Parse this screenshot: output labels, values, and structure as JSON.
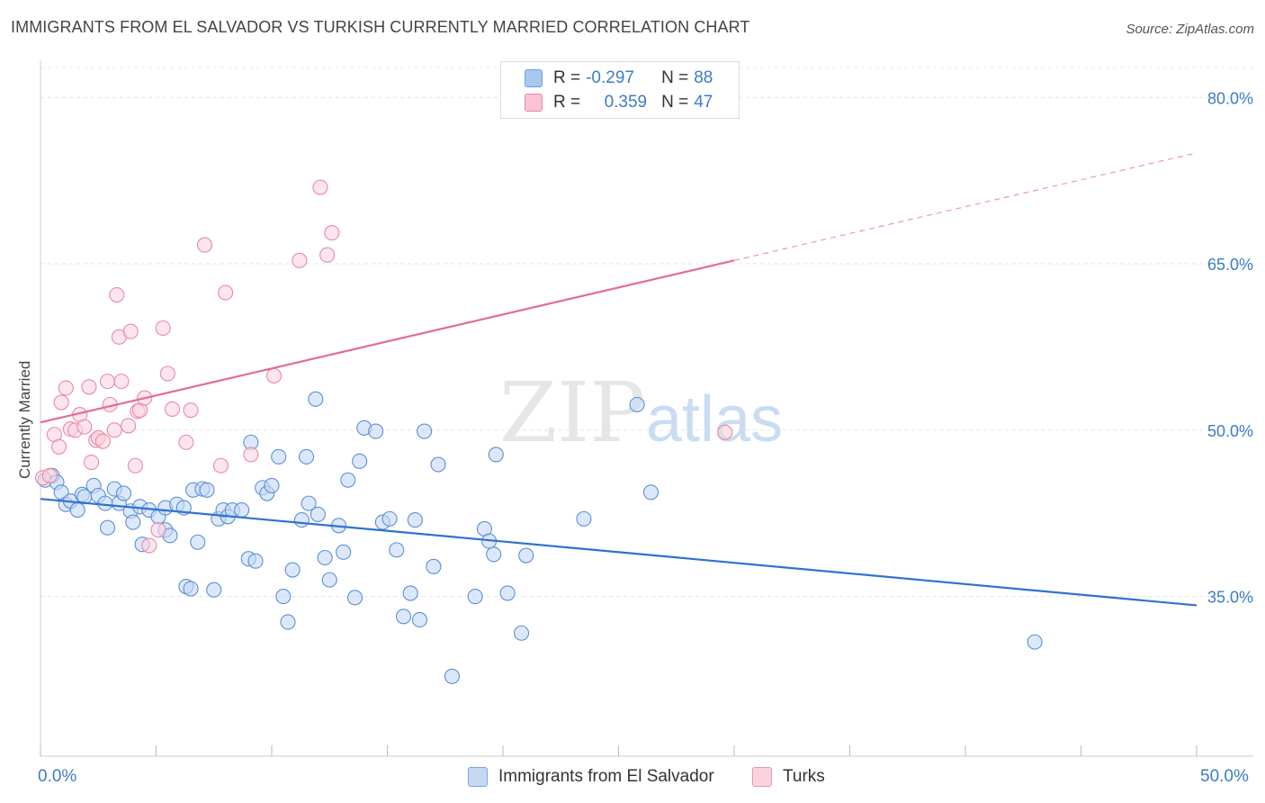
{
  "header": {
    "title": "IMMIGRANTS FROM EL SALVADOR VS TURKISH CURRENTLY MARRIED CORRELATION CHART",
    "source": "Source: ZipAtlas.com"
  },
  "legend": {
    "rows": [
      {
        "r_label": "R = ",
        "r_value": "-0.297",
        "n_label": "N = ",
        "n_value": "88",
        "color": "#a9c8f0",
        "border": "#6f9fdc"
      },
      {
        "r_label": "R = ",
        "r_value": "0.359",
        "n_label": "N = ",
        "n_value": "47",
        "color": "#f8c3d3",
        "border": "#e88aa6"
      }
    ]
  },
  "bottom_legend": [
    {
      "label": "Immigrants from El Salvador",
      "color": "#c5d9f5",
      "border": "#7aa5de"
    },
    {
      "label": "Turks",
      "color": "#fbd3df",
      "border": "#e796b0"
    }
  ],
  "watermark": {
    "zip": "ZIP",
    "atlas": "atlas"
  },
  "chart_data": {
    "type": "scatter",
    "title": "IMMIGRANTS FROM EL SALVADOR VS TURKISH CURRENTLY MARRIED CORRELATION CHART",
    "xlabel": "",
    "ylabel": "Currently Married",
    "xlim": [
      0,
      50
    ],
    "ylim": [
      20.6,
      82.7
    ],
    "x_tick_labels": [
      "0.0%",
      "50.0%"
    ],
    "y_tick_labels": [
      "35.0%",
      "50.0%",
      "65.0%",
      "80.0%"
    ],
    "y_ticks": [
      35,
      50,
      65,
      80
    ],
    "grid": true,
    "series": [
      {
        "name": "Immigrants from El Salvador",
        "color": "#5b8fd6",
        "fill": "#c5d9f5",
        "trend": {
          "x": [
            0,
            50
          ],
          "y": [
            43.8,
            34.2
          ],
          "color": "#2f72d0"
        },
        "points": [
          [
            0.2,
            45.5
          ],
          [
            0.5,
            45.9
          ],
          [
            0.7,
            45.3
          ],
          [
            0.9,
            44.4
          ],
          [
            1.1,
            43.3
          ],
          [
            1.3,
            43.6
          ],
          [
            1.6,
            42.8
          ],
          [
            1.8,
            44.2
          ],
          [
            1.9,
            44.0
          ],
          [
            2.3,
            45.0
          ],
          [
            2.5,
            44.1
          ],
          [
            2.8,
            43.4
          ],
          [
            2.9,
            41.2
          ],
          [
            3.2,
            44.7
          ],
          [
            3.4,
            43.4
          ],
          [
            3.6,
            44.3
          ],
          [
            3.9,
            42.7
          ],
          [
            4.0,
            41.7
          ],
          [
            4.3,
            43.1
          ],
          [
            4.4,
            39.7
          ],
          [
            4.7,
            42.8
          ],
          [
            5.1,
            42.2
          ],
          [
            5.4,
            43.0
          ],
          [
            5.4,
            41.0
          ],
          [
            5.6,
            40.5
          ],
          [
            5.9,
            43.3
          ],
          [
            6.2,
            43.0
          ],
          [
            6.3,
            35.9
          ],
          [
            6.5,
            35.7
          ],
          [
            6.6,
            44.6
          ],
          [
            6.8,
            39.9
          ],
          [
            7.0,
            44.7
          ],
          [
            7.2,
            44.6
          ],
          [
            7.5,
            35.6
          ],
          [
            7.7,
            42.0
          ],
          [
            7.9,
            42.8
          ],
          [
            8.1,
            42.2
          ],
          [
            8.3,
            42.8
          ],
          [
            8.7,
            42.8
          ],
          [
            9.0,
            38.4
          ],
          [
            9.1,
            48.9
          ],
          [
            9.3,
            38.2
          ],
          [
            9.6,
            44.8
          ],
          [
            9.8,
            44.3
          ],
          [
            10.0,
            45.0
          ],
          [
            10.3,
            47.6
          ],
          [
            10.5,
            35.0
          ],
          [
            10.7,
            32.7
          ],
          [
            10.9,
            37.4
          ],
          [
            11.3,
            41.9
          ],
          [
            11.5,
            47.6
          ],
          [
            11.6,
            43.4
          ],
          [
            11.9,
            52.8
          ],
          [
            12.0,
            42.4
          ],
          [
            12.3,
            38.5
          ],
          [
            12.5,
            36.5
          ],
          [
            12.9,
            41.4
          ],
          [
            13.1,
            39.0
          ],
          [
            13.3,
            45.5
          ],
          [
            13.6,
            34.9
          ],
          [
            13.8,
            47.2
          ],
          [
            14.0,
            50.2
          ],
          [
            14.5,
            49.9
          ],
          [
            14.8,
            41.7
          ],
          [
            15.1,
            42.0
          ],
          [
            15.4,
            39.2
          ],
          [
            15.7,
            33.2
          ],
          [
            16.0,
            35.3
          ],
          [
            16.2,
            41.9
          ],
          [
            16.4,
            32.9
          ],
          [
            16.6,
            49.9
          ],
          [
            17.0,
            37.7
          ],
          [
            17.2,
            46.9
          ],
          [
            17.8,
            27.8
          ],
          [
            18.8,
            35.0
          ],
          [
            19.2,
            41.1
          ],
          [
            19.4,
            40.0
          ],
          [
            19.6,
            38.8
          ],
          [
            19.7,
            47.8
          ],
          [
            20.2,
            35.3
          ],
          [
            20.8,
            31.7
          ],
          [
            21.0,
            38.7
          ],
          [
            23.5,
            42.0
          ],
          [
            25.8,
            52.3
          ],
          [
            26.4,
            44.4
          ],
          [
            43.0,
            30.9
          ]
        ]
      },
      {
        "name": "Turks",
        "color": "#e88aa6",
        "fill": "#fbd3df",
        "trend": {
          "x": [
            0,
            30
          ],
          "y": [
            50.7,
            65.3
          ],
          "color": "#e56b92",
          "dashed_to": {
            "x": 50,
            "y": 75.0
          }
        },
        "points": [
          [
            0.1,
            45.7
          ],
          [
            0.4,
            45.9
          ],
          [
            0.6,
            49.6
          ],
          [
            0.8,
            48.5
          ],
          [
            0.9,
            52.5
          ],
          [
            1.1,
            53.8
          ],
          [
            1.3,
            50.1
          ],
          [
            1.5,
            50.0
          ],
          [
            1.7,
            51.4
          ],
          [
            1.9,
            50.3
          ],
          [
            2.1,
            53.9
          ],
          [
            2.2,
            47.1
          ],
          [
            2.4,
            49.1
          ],
          [
            2.5,
            49.3
          ],
          [
            2.7,
            49.0
          ],
          [
            2.9,
            54.4
          ],
          [
            3.0,
            52.3
          ],
          [
            3.2,
            50.0
          ],
          [
            3.3,
            62.2
          ],
          [
            3.4,
            58.4
          ],
          [
            3.5,
            54.4
          ],
          [
            3.8,
            50.4
          ],
          [
            3.9,
            58.9
          ],
          [
            4.1,
            46.8
          ],
          [
            4.2,
            51.7
          ],
          [
            4.3,
            51.8
          ],
          [
            4.5,
            52.9
          ],
          [
            4.7,
            39.6
          ],
          [
            5.1,
            41.0
          ],
          [
            5.3,
            59.2
          ],
          [
            5.5,
            55.1
          ],
          [
            5.7,
            51.9
          ],
          [
            6.3,
            48.9
          ],
          [
            6.5,
            51.8
          ],
          [
            7.1,
            66.7
          ],
          [
            7.8,
            46.8
          ],
          [
            8.0,
            62.4
          ],
          [
            9.1,
            47.8
          ],
          [
            10.1,
            54.9
          ],
          [
            11.2,
            65.3
          ],
          [
            12.1,
            71.9
          ],
          [
            12.4,
            65.8
          ],
          [
            12.6,
            67.8
          ],
          [
            29.6,
            49.8
          ]
        ]
      }
    ]
  }
}
